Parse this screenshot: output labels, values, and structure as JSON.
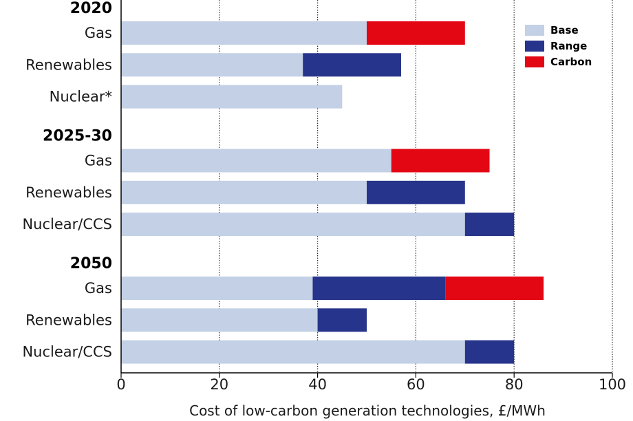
{
  "chart_data": {
    "type": "bar",
    "orientation": "horizontal",
    "stacked": true,
    "xlabel": "Cost of low-carbon generation technologies, £/MWh",
    "xlim": [
      0,
      100
    ],
    "xticks": [
      "0",
      "20",
      "40",
      "60",
      "80",
      "100"
    ],
    "grid": "vertical dotted",
    "legend_position": "top-right",
    "series": [
      {
        "name": "Base",
        "color": "#c3d0e6"
      },
      {
        "name": "Range",
        "color": "#27348b"
      },
      {
        "name": "Carbon",
        "color": "#e30613"
      }
    ],
    "groups": [
      {
        "label": "2020",
        "bars": [
          {
            "category": "Gas",
            "Base": 50,
            "Range": 0,
            "Carbon": 20
          },
          {
            "category": "Renewables",
            "Base": 37,
            "Range": 20,
            "Carbon": 0
          },
          {
            "category": "Nuclear*",
            "Base": 45,
            "Range": 0,
            "Carbon": 0
          }
        ]
      },
      {
        "label": "2025-30",
        "bars": [
          {
            "category": "Gas",
            "Base": 55,
            "Range": 0,
            "Carbon": 20
          },
          {
            "category": "Renewables",
            "Base": 50,
            "Range": 20,
            "Carbon": 0
          },
          {
            "category": "Nuclear/CCS",
            "Base": 70,
            "Range": 10,
            "Carbon": 0
          }
        ]
      },
      {
        "label": "2050",
        "bars": [
          {
            "category": "Gas",
            "Base": 39,
            "Range": 27,
            "Carbon": 20
          },
          {
            "category": "Renewables",
            "Base": 40,
            "Range": 10,
            "Carbon": 0
          },
          {
            "category": "Nuclear/CCS",
            "Base": 70,
            "Range": 10,
            "Carbon": 0
          }
        ]
      }
    ]
  }
}
